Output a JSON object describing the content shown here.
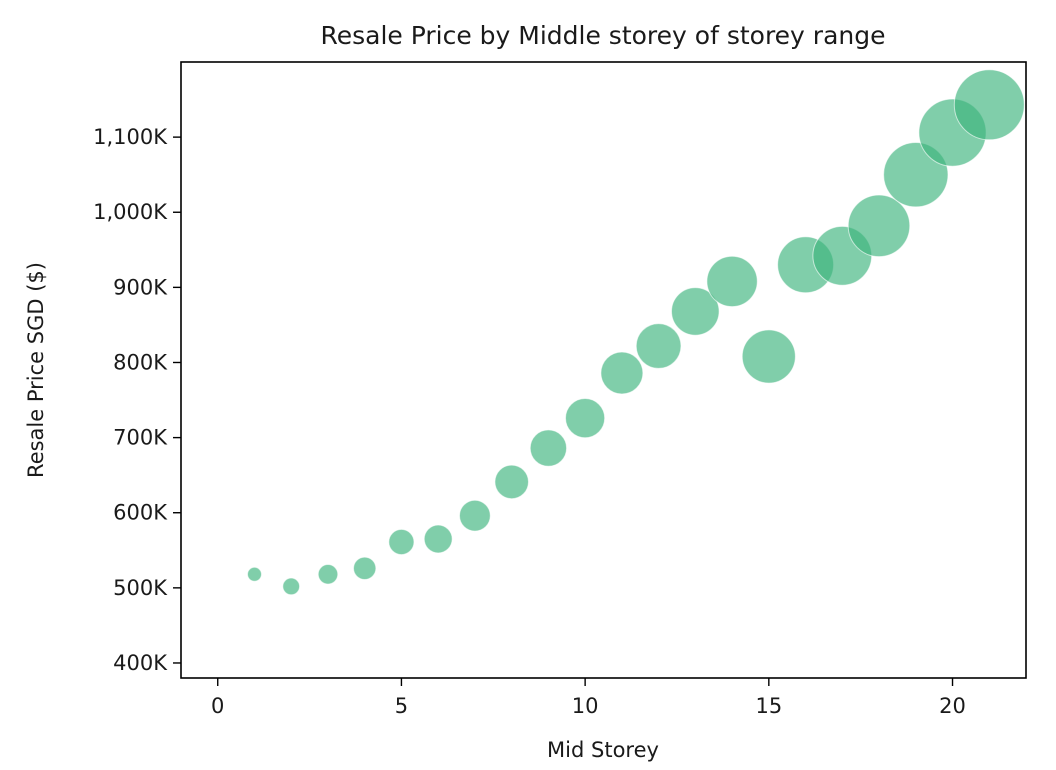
{
  "chart_data": {
    "type": "scatter",
    "title": "Resale Price by Middle storey of storey range",
    "xlabel": "Mid Storey",
    "ylabel": "Resale Price SGD ($)",
    "xlim": [
      -1,
      22
    ],
    "ylim": [
      380000,
      1200000
    ],
    "xticks": [
      0,
      5,
      10,
      15,
      20
    ],
    "xtick_labels": [
      "0",
      "5",
      "10",
      "15",
      "20"
    ],
    "yticks": [
      400000,
      500000,
      600000,
      700000,
      800000,
      900000,
      1000000,
      1100000
    ],
    "ytick_labels": [
      "400K",
      "500K",
      "600K",
      "700K",
      "800K",
      "900K",
      "1,000K",
      "1,100K"
    ],
    "grid": false,
    "color": "#3cb47c",
    "point_opacity": 0.65,
    "size_encodes": "x",
    "points": [
      {
        "x": 1,
        "y": 518000
      },
      {
        "x": 2,
        "y": 502000
      },
      {
        "x": 3,
        "y": 518000
      },
      {
        "x": 4,
        "y": 526000
      },
      {
        "x": 5,
        "y": 561000
      },
      {
        "x": 6,
        "y": 565000
      },
      {
        "x": 7,
        "y": 596000
      },
      {
        "x": 8,
        "y": 641000
      },
      {
        "x": 9,
        "y": 686000
      },
      {
        "x": 10,
        "y": 726000
      },
      {
        "x": 11,
        "y": 786000
      },
      {
        "x": 12,
        "y": 822000
      },
      {
        "x": 13,
        "y": 868000
      },
      {
        "x": 14,
        "y": 908000
      },
      {
        "x": 15,
        "y": 808000
      },
      {
        "x": 16,
        "y": 930000
      },
      {
        "x": 17,
        "y": 942000
      },
      {
        "x": 18,
        "y": 982000
      },
      {
        "x": 19,
        "y": 1050000
      },
      {
        "x": 20,
        "y": 1106000
      },
      {
        "x": 21,
        "y": 1143000
      }
    ]
  }
}
